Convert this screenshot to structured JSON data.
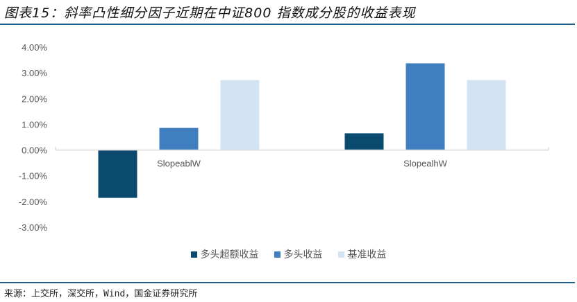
{
  "header": {
    "title": "图表15：斜率凸性细分因子近期在中证800 指数成分股的收益表现"
  },
  "footer": {
    "source": "来源：上交所，深交所，Wind，国金证券研究所"
  },
  "chart_data": {
    "type": "bar",
    "title": "图表15：斜率凸性细分因子近期在中证800 指数成分股的收益表现",
    "xlabel": "",
    "ylabel": "",
    "categories": [
      "SlopeablW",
      "SlopealhW"
    ],
    "series": [
      {
        "name": "多头超额收益",
        "color": "#0b4a6f",
        "values": [
          -1.86,
          0.65
        ]
      },
      {
        "name": "多头收益",
        "color": "#3f7fbf",
        "values": [
          0.86,
          3.37
        ]
      },
      {
        "name": "基准收益",
        "color": "#d3e3f3",
        "values": [
          2.72,
          2.72
        ]
      }
    ],
    "ylim": [
      -3,
      4
    ],
    "yticks": [
      4,
      3,
      2,
      1,
      0,
      -1,
      -2,
      -3
    ],
    "ytick_labels": [
      "4.00%",
      "3.00%",
      "2.00%",
      "1.00%",
      "0.00%",
      "-1.00%",
      "-2.00%",
      "-3.00%"
    ],
    "grid": false,
    "legend_position": "bottom"
  }
}
